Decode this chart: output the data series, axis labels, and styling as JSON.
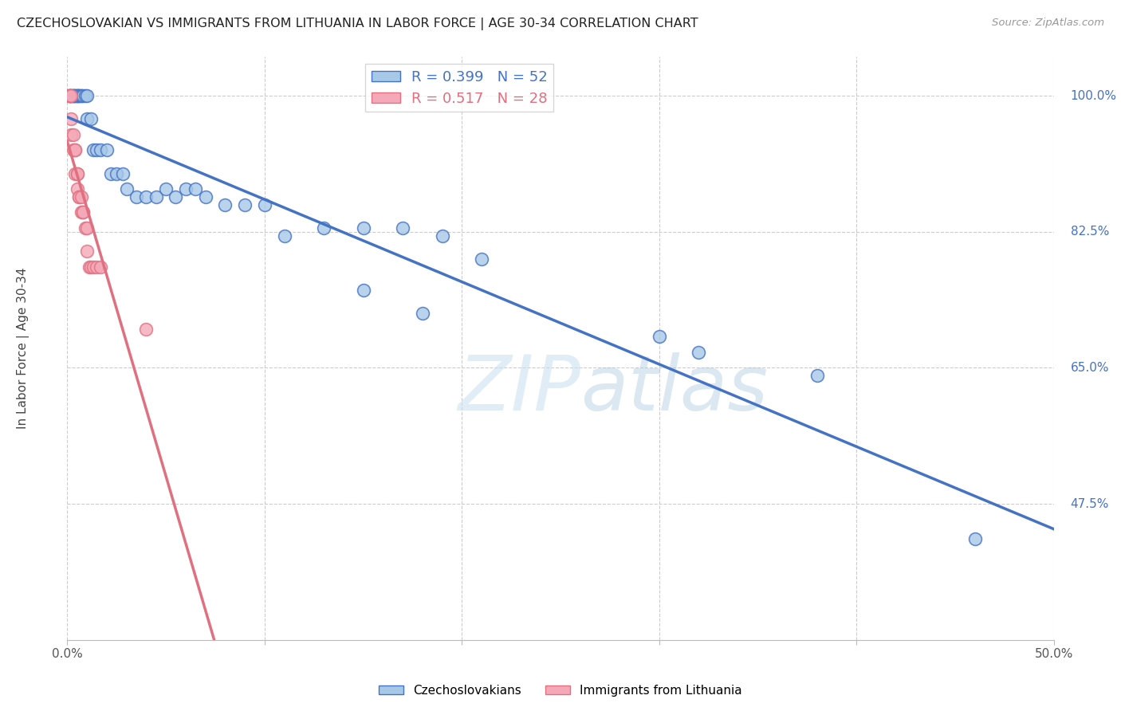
{
  "title": "CZECHOSLOVAKIAN VS IMMIGRANTS FROM LITHUANIA IN LABOR FORCE | AGE 30-34 CORRELATION CHART",
  "source": "Source: ZipAtlas.com",
  "ylabel": "In Labor Force | Age 30-34",
  "xlim": [
    0.0,
    0.5
  ],
  "ylim": [
    0.3,
    1.05
  ],
  "xticks": [
    0.0,
    0.1,
    0.2,
    0.3,
    0.4,
    0.5
  ],
  "xticklabels": [
    "0.0%",
    "",
    "",
    "",
    "",
    "50.0%"
  ],
  "yticks_right": [
    0.475,
    0.65,
    0.825,
    1.0
  ],
  "yticklabels_right": [
    "47.5%",
    "65.0%",
    "82.5%",
    "100.0%"
  ],
  "grid_color": "#cccccc",
  "background_color": "#ffffff",
  "blue_fill": "#a8c8e8",
  "blue_edge": "#4472c4",
  "pink_fill": "#f4a8b8",
  "pink_edge": "#e07080",
  "blue_line_color": "#4472c4",
  "pink_line_color": "#e07080",
  "blue_R": 0.399,
  "blue_N": 52,
  "pink_R": 0.517,
  "pink_N": 28,
  "watermark_zip": "ZIP",
  "watermark_atlas": "atlas",
  "legend_label_blue": "Czechoslovakians",
  "legend_label_pink": "Immigrants from Lithuania",
  "blue_x": [
    0.001,
    0.001,
    0.002,
    0.002,
    0.003,
    0.003,
    0.003,
    0.004,
    0.004,
    0.005,
    0.005,
    0.005,
    0.006,
    0.006,
    0.007,
    0.007,
    0.008,
    0.009,
    0.01,
    0.01,
    0.012,
    0.013,
    0.015,
    0.017,
    0.02,
    0.022,
    0.025,
    0.028,
    0.03,
    0.035,
    0.04,
    0.045,
    0.05,
    0.055,
    0.06,
    0.065,
    0.07,
    0.08,
    0.09,
    0.1,
    0.11,
    0.13,
    0.15,
    0.17,
    0.19,
    0.21,
    0.15,
    0.18,
    0.3,
    0.32,
    0.38,
    0.46
  ],
  "blue_y": [
    1.0,
    1.0,
    1.0,
    1.0,
    1.0,
    1.0,
    1.0,
    1.0,
    1.0,
    1.0,
    1.0,
    1.0,
    1.0,
    1.0,
    1.0,
    1.0,
    1.0,
    1.0,
    1.0,
    0.97,
    0.97,
    0.93,
    0.93,
    0.93,
    0.93,
    0.9,
    0.9,
    0.9,
    0.88,
    0.87,
    0.87,
    0.87,
    0.88,
    0.87,
    0.88,
    0.88,
    0.87,
    0.86,
    0.86,
    0.86,
    0.82,
    0.83,
    0.83,
    0.83,
    0.82,
    0.79,
    0.75,
    0.72,
    0.69,
    0.67,
    0.64,
    0.43
  ],
  "pink_x": [
    0.001,
    0.001,
    0.002,
    0.002,
    0.002,
    0.003,
    0.003,
    0.004,
    0.004,
    0.004,
    0.005,
    0.005,
    0.005,
    0.006,
    0.006,
    0.007,
    0.007,
    0.008,
    0.008,
    0.009,
    0.01,
    0.01,
    0.011,
    0.012,
    0.013,
    0.015,
    0.017,
    0.04
  ],
  "pink_y": [
    1.0,
    1.0,
    1.0,
    0.97,
    0.95,
    0.95,
    0.93,
    0.93,
    0.93,
    0.9,
    0.9,
    0.9,
    0.88,
    0.87,
    0.87,
    0.87,
    0.85,
    0.85,
    0.85,
    0.83,
    0.83,
    0.8,
    0.78,
    0.78,
    0.78,
    0.78,
    0.78,
    0.7
  ]
}
